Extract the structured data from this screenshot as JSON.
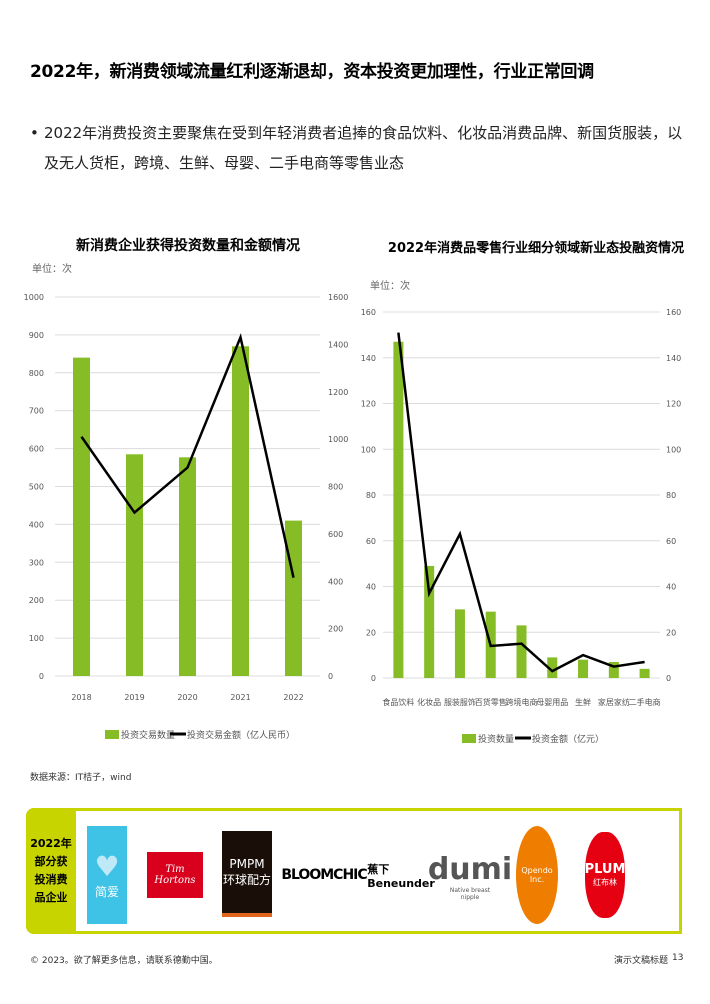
{
  "page": {
    "title": "2022年，新消费领域流量红利逐渐退却，资本投资更加理性，行业正常回调",
    "bullet": "2022年消费投资主要聚焦在受到年轻消费者追捧的食品饮料、化妆品消费品牌、新国货服装，以及无人货柜，跨境、生鲜、母婴、二手电商等零售业态",
    "source": "数据来源：IT桔子，wind",
    "band_label": "2022年部分获投消费品企业",
    "logos": [
      "简爱",
      "Tim Hortons",
      "PMPM 环球配方",
      "BLOOMCHIC",
      "蕉下 Beneunder",
      "dumi",
      "Native breast nipple",
      "Qpendo Inc.",
      "PLUM",
      "红布林"
    ],
    "footer_left": "© 2023。欲了解更多信息，请联系德勤中国。",
    "footer_right": "演示文稿标题",
    "page_number": "13"
  },
  "colors": {
    "bar": "#86bc25",
    "line": "#000000",
    "accent": "#c7d400"
  },
  "chart_data": [
    {
      "type": "bar+line",
      "title": "新消费企业获得投资数量和金额情况",
      "unit": "单位：次",
      "categories": [
        "2018",
        "2019",
        "2020",
        "2021",
        "2022"
      ],
      "ylim": [
        0,
        1000
      ],
      "yticks": [
        "0",
        "100",
        "200",
        "300",
        "400",
        "500",
        "600",
        "700",
        "800",
        "900",
        "1000"
      ],
      "y2lim": [
        0,
        1600
      ],
      "y2ticks": [
        "0",
        "200",
        "400",
        "600",
        "800",
        "1000",
        "1200",
        "1400",
        "1600"
      ],
      "series": [
        {
          "name": "投资交易数量",
          "type": "bar",
          "axis": "left",
          "values": [
            840,
            585,
            577,
            870,
            410
          ]
        },
        {
          "name": "投资交易金额（亿人民币）",
          "type": "line",
          "axis": "right",
          "values": [
            1010,
            690,
            880,
            1430,
            415
          ]
        }
      ],
      "grid": true,
      "legend": "bottom"
    },
    {
      "type": "bar+line",
      "title": "2022年消费品零售行业细分领域新业态投融资情况",
      "unit": "单位：次",
      "categories": [
        "食品饮料",
        "化妆品",
        "服装服饰",
        "百货零售",
        "跨境电商",
        "母婴用品",
        "生鲜",
        "家居家纺",
        "二手电商"
      ],
      "ylim": [
        0,
        160
      ],
      "yticks": [
        "0",
        "20",
        "40",
        "60",
        "80",
        "100",
        "120",
        "140",
        "160"
      ],
      "y2lim": [
        0,
        160
      ],
      "y2ticks": [
        "0",
        "20",
        "40",
        "60",
        "80",
        "100",
        "120",
        "140",
        "160"
      ],
      "series": [
        {
          "name": "投资数量",
          "type": "bar",
          "axis": "left",
          "values": [
            147,
            49,
            30,
            29,
            23,
            9,
            8,
            7,
            4
          ]
        },
        {
          "name": "投资金额（亿元）",
          "type": "line",
          "axis": "right",
          "values": [
            151,
            37,
            63,
            14,
            15,
            3,
            10,
            5,
            7
          ]
        }
      ],
      "grid": true,
      "legend": "bottom"
    }
  ]
}
